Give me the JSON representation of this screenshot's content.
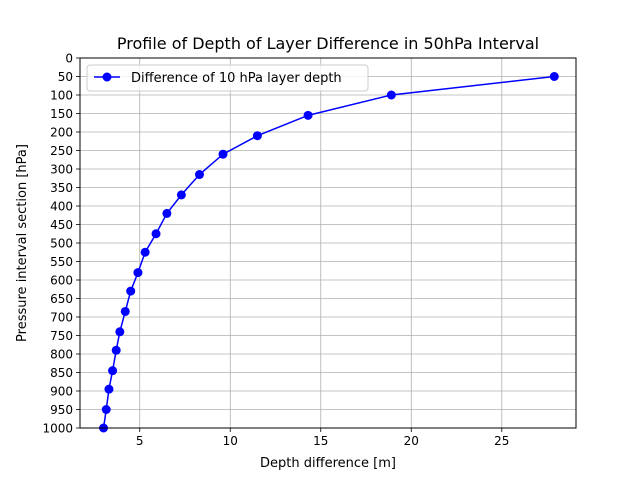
{
  "chart_data": {
    "type": "line",
    "title": "Profile of Depth of Layer Difference in 50hPa Interval",
    "xlabel": "Depth difference [m]",
    "ylabel": "Pressure interval section [hPa]",
    "xlim": [
      1.7,
      29.1
    ],
    "ylim": [
      1000,
      0
    ],
    "y_inverted": true,
    "grid": true,
    "legend_position": "top-left",
    "x_ticks": [
      5,
      10,
      15,
      20,
      25
    ],
    "y_ticks": [
      0,
      50,
      100,
      150,
      200,
      250,
      300,
      350,
      400,
      450,
      500,
      550,
      600,
      650,
      700,
      750,
      800,
      850,
      900,
      950,
      1000
    ],
    "series": [
      {
        "name": "Difference of 10 hPa layer depth",
        "color": "#0000ff",
        "marker": "circle",
        "x": [
          27.9,
          18.9,
          14.3,
          11.5,
          9.6,
          8.3,
          7.3,
          6.5,
          5.9,
          5.3,
          4.9,
          4.5,
          4.2,
          3.9,
          3.7,
          3.5,
          3.3,
          3.15,
          3.0
        ],
        "y": [
          50,
          100,
          155,
          210,
          260,
          315,
          370,
          420,
          475,
          525,
          580,
          630,
          685,
          740,
          790,
          845,
          895,
          950,
          1000
        ]
      }
    ]
  }
}
